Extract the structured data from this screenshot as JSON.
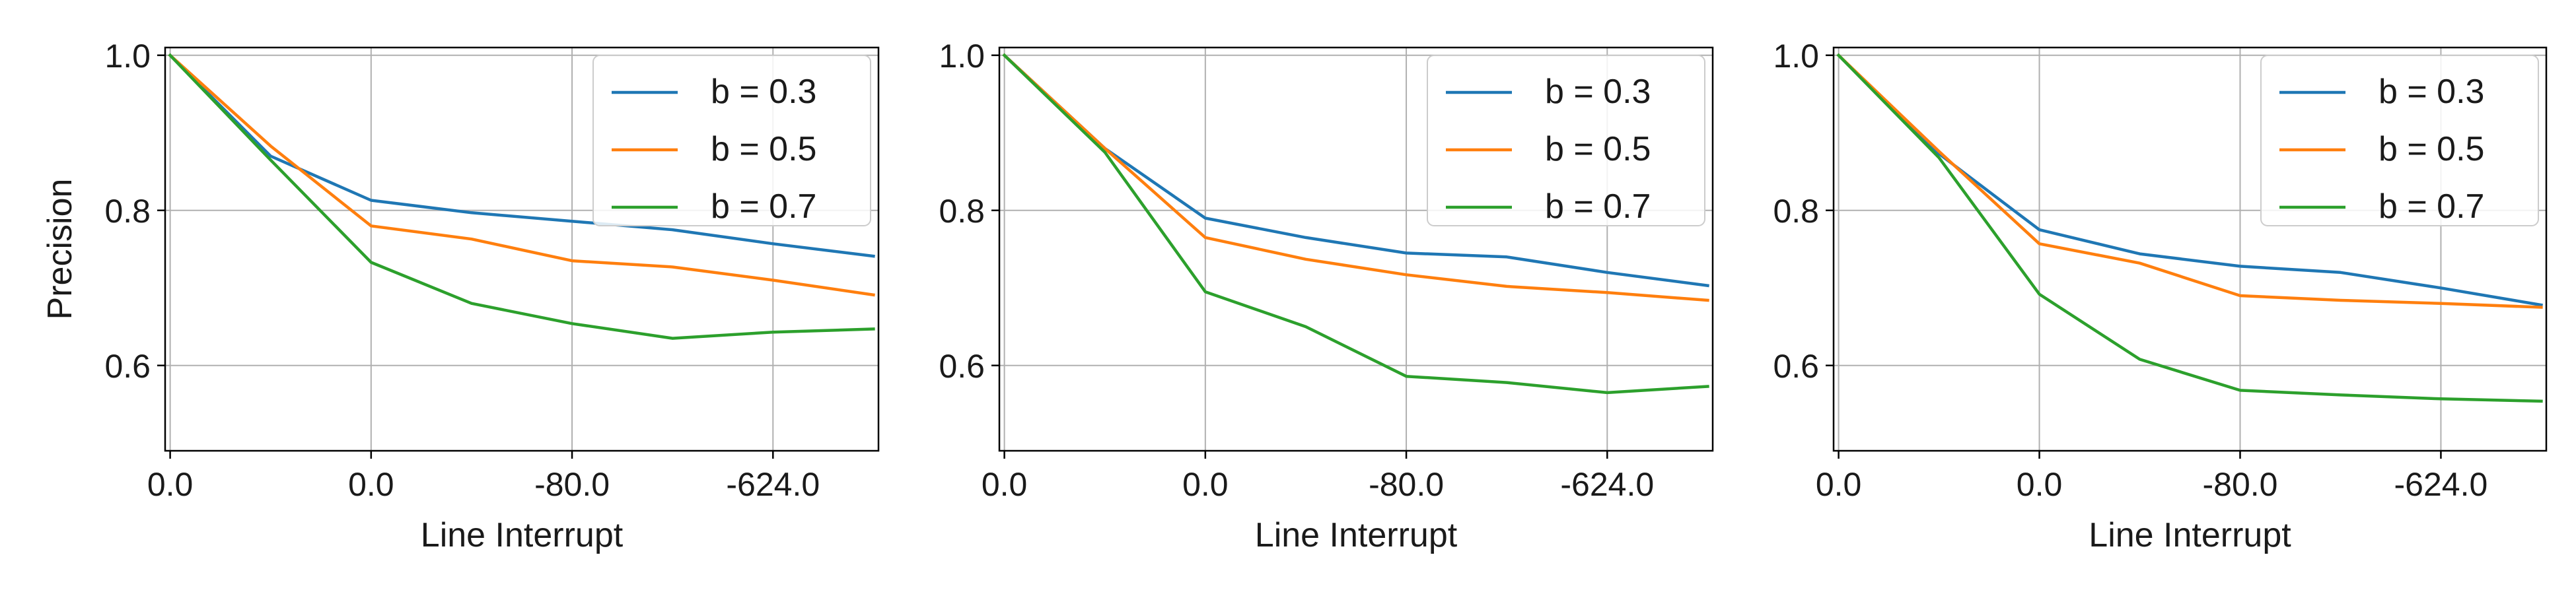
{
  "chart_data": [
    {
      "type": "line",
      "x_tick_labels": [
        "0.0",
        "0.0",
        "-80.0",
        "-624.0"
      ],
      "x_tick_positions": [
        0,
        2,
        4,
        6
      ],
      "x": [
        0,
        1,
        2,
        3,
        4,
        5,
        6,
        7
      ],
      "xlim": [
        -0.05,
        7.05
      ],
      "ylim": [
        0.49,
        1.01
      ],
      "yticks": [
        0.6,
        0.8,
        1.0
      ],
      "xlabel": "Line Interrupt",
      "ylabel": "Precision",
      "grid": true,
      "legend_position": "top-right",
      "series": [
        {
          "name": "b = 0.3",
          "color": "#1f77b4",
          "values": [
            1.0,
            0.87,
            0.813,
            0.797,
            0.786,
            0.775,
            0.757,
            0.741
          ]
        },
        {
          "name": "b = 0.5",
          "color": "#ff7f0e",
          "values": [
            1.0,
            0.883,
            0.78,
            0.763,
            0.735,
            0.727,
            0.71,
            0.691
          ]
        },
        {
          "name": "b = 0.7",
          "color": "#2ca02c",
          "values": [
            1.0,
            0.865,
            0.733,
            0.68,
            0.654,
            0.635,
            0.643,
            0.647
          ]
        }
      ]
    },
    {
      "type": "line",
      "x_tick_labels": [
        "0.0",
        "0.0",
        "-80.0",
        "-624.0"
      ],
      "x_tick_positions": [
        0,
        2,
        4,
        6
      ],
      "x": [
        0,
        1,
        2,
        3,
        4,
        5,
        6,
        7
      ],
      "xlim": [
        -0.05,
        7.05
      ],
      "ylim": [
        0.49,
        1.01
      ],
      "yticks": [
        0.6,
        0.8,
        1.0
      ],
      "xlabel": "Line Interrupt",
      "ylabel": "",
      "grid": true,
      "legend_position": "top-right",
      "series": [
        {
          "name": "b = 0.3",
          "color": "#1f77b4",
          "values": [
            1.0,
            0.88,
            0.79,
            0.765,
            0.745,
            0.74,
            0.72,
            0.703
          ]
        },
        {
          "name": "b = 0.5",
          "color": "#ff7f0e",
          "values": [
            1.0,
            0.88,
            0.765,
            0.737,
            0.717,
            0.702,
            0.694,
            0.684
          ]
        },
        {
          "name": "b = 0.7",
          "color": "#2ca02c",
          "values": [
            1.0,
            0.875,
            0.695,
            0.65,
            0.586,
            0.578,
            0.565,
            0.573
          ]
        }
      ]
    },
    {
      "type": "line",
      "x_tick_labels": [
        "0.0",
        "0.0",
        "-80.0",
        "-624.0"
      ],
      "x_tick_positions": [
        0,
        2,
        4,
        6
      ],
      "x": [
        0,
        1,
        2,
        3,
        4,
        5,
        6,
        7
      ],
      "xlim": [
        -0.05,
        7.05
      ],
      "ylim": [
        0.49,
        1.01
      ],
      "yticks": [
        0.6,
        0.8,
        1.0
      ],
      "xlabel": "Line Interrupt",
      "ylabel": "",
      "grid": true,
      "legend_position": "top-right",
      "series": [
        {
          "name": "b = 0.3",
          "color": "#1f77b4",
          "values": [
            1.0,
            0.873,
            0.775,
            0.744,
            0.728,
            0.72,
            0.7,
            0.678
          ]
        },
        {
          "name": "b = 0.5",
          "color": "#ff7f0e",
          "values": [
            1.0,
            0.876,
            0.757,
            0.732,
            0.69,
            0.684,
            0.68,
            0.675
          ]
        },
        {
          "name": "b = 0.7",
          "color": "#2ca02c",
          "values": [
            1.0,
            0.868,
            0.692,
            0.608,
            0.568,
            0.562,
            0.557,
            0.554
          ]
        }
      ]
    }
  ]
}
